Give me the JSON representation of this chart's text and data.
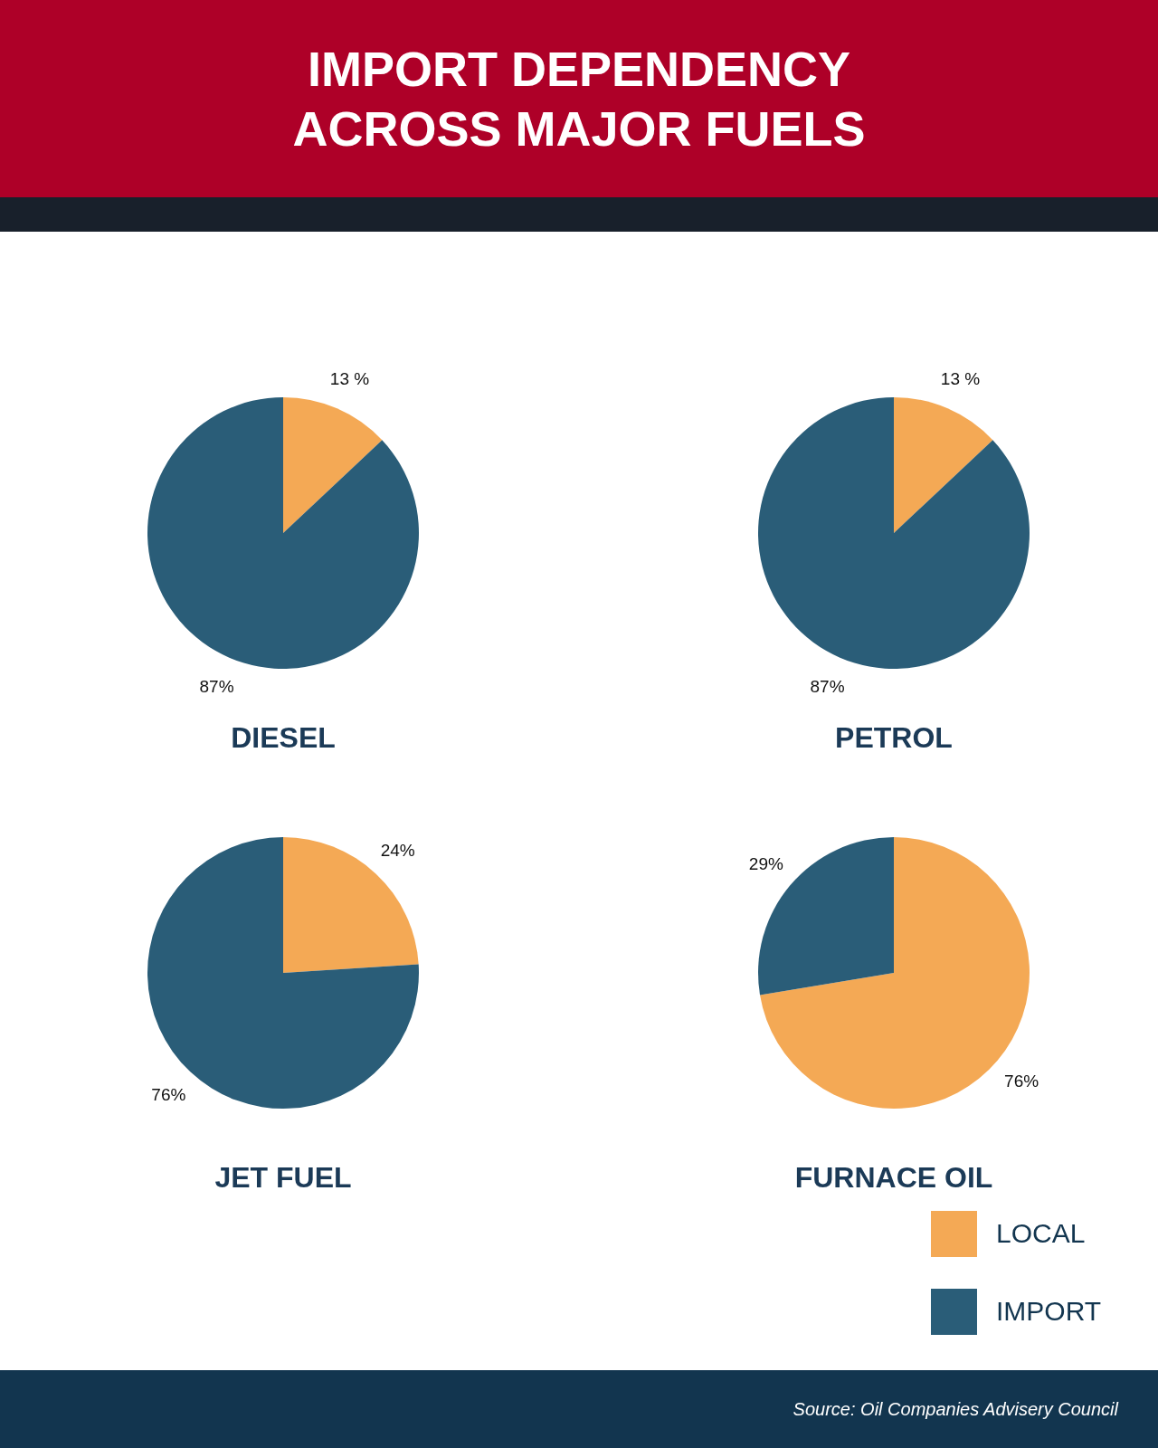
{
  "chart_data": [
    {
      "type": "other",
      "title": "IMPORT DEPENDENCY\nACROSS MAJOR FUELS",
      "annotations": [
        "Source: Oil Companies Advisery Council"
      ]
    },
    {
      "type": "pie",
      "title": "DIESEL",
      "categories": [
        null,
        null
      ],
      "values": [
        13,
        87
      ],
      "colors": [
        "#f4a955",
        "#2a5d78"
      ],
      "value_labels": [
        "13 %",
        "87%"
      ]
    },
    {
      "type": "pie",
      "title": "PETROL",
      "categories": [
        null,
        null
      ],
      "values": [
        13,
        87
      ],
      "colors": [
        "#f4a955",
        "#2a5d78"
      ],
      "value_labels": [
        "13 %",
        "87%"
      ]
    },
    {
      "type": "pie",
      "title": "JET FUEL",
      "categories": [
        null,
        null
      ],
      "values": [
        24,
        76
      ],
      "colors": [
        "#f4a955",
        "#2a5d78"
      ],
      "value_labels": [
        "24%",
        "76%"
      ]
    },
    {
      "type": "pie",
      "title": "FURNACE OIL",
      "categories": [
        "LOCAL",
        "IMPORT"
      ],
      "values": [
        76,
        29
      ],
      "colors": [
        "#f4a955",
        "#2a5d78"
      ],
      "value_labels": [
        "76%",
        "29%"
      ],
      "legend": "bottom right"
    }
  ]
}
